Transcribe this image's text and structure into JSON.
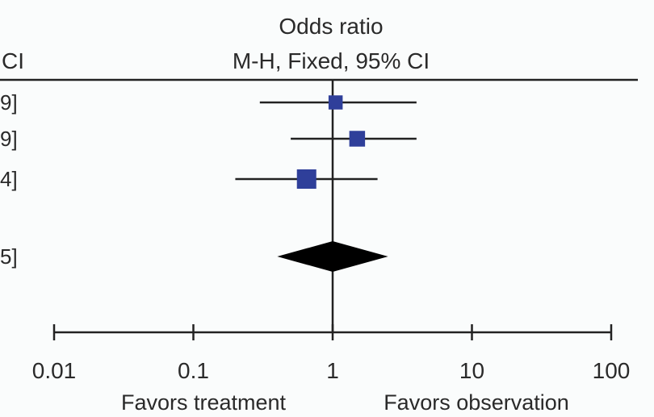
{
  "chart_data": {
    "type": "forest",
    "title": "Odds ratio",
    "subtitle": "M-H, Fixed, 95% CI",
    "header_left_fragment": "CI",
    "xscale": "log",
    "xlim": [
      0.01,
      100
    ],
    "xticks": [
      0.01,
      0.1,
      1,
      10,
      100
    ],
    "xtick_labels": [
      "0.01",
      "0.1",
      "1",
      "10",
      "100"
    ],
    "reference_line": 1,
    "x_label_left": "Favors treatment",
    "x_label_right": "Favors observation",
    "studies": [
      {
        "or": 1.05,
        "ci": [
          0.3,
          4.0
        ],
        "weight": 0.22,
        "left_fragment": "9]"
      },
      {
        "or": 1.5,
        "ci": [
          0.5,
          4.0
        ],
        "weight": 0.3,
        "left_fragment": "9]"
      },
      {
        "or": 0.65,
        "ci": [
          0.2,
          2.1
        ],
        "weight": 0.48,
        "left_fragment": "4]"
      }
    ],
    "pooled": {
      "or": 1.0,
      "ci": [
        0.4,
        2.5
      ],
      "left_fragment": "5]"
    },
    "colors": {
      "box": "#2f3f9a",
      "diamond": "#000000",
      "line": "#222222",
      "background": "#fafcfc"
    },
    "grid": false
  }
}
